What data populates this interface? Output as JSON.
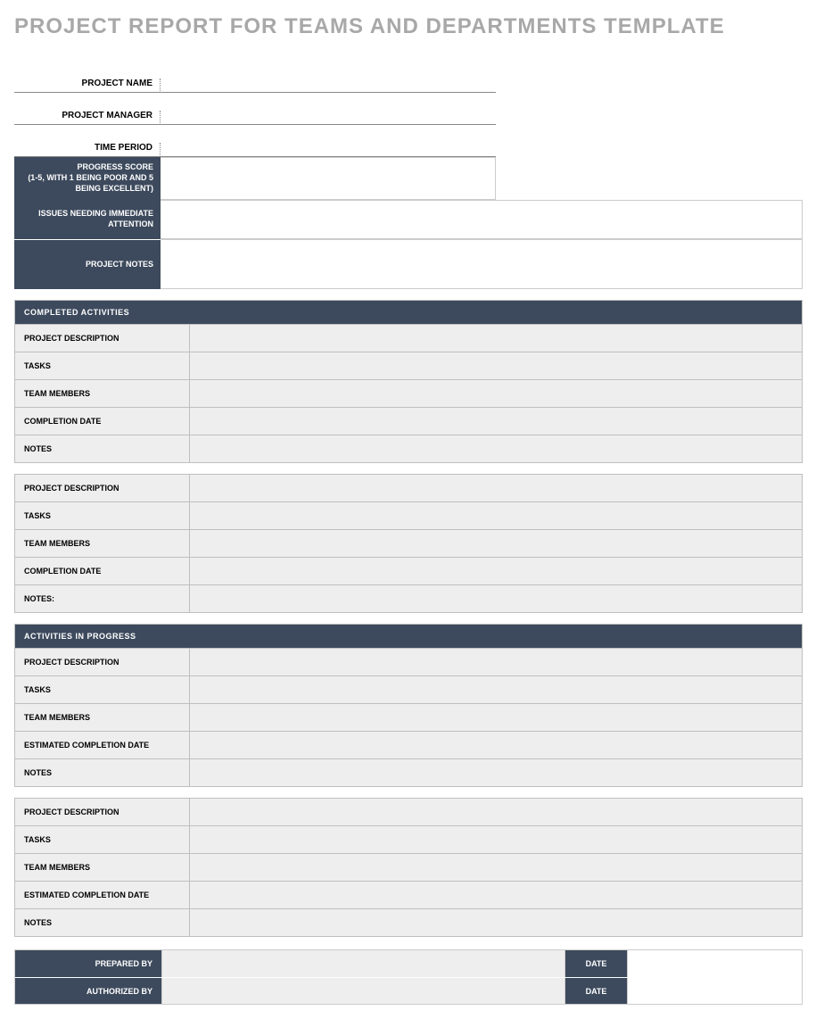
{
  "title": "PROJECT REPORT FOR TEAMS AND DEPARTMENTS TEMPLATE",
  "colors": {
    "title_text": "#a8a8a8",
    "dark_header_bg": "#3d4a5d",
    "dark_header_text": "#ffffff",
    "light_cell_bg": "#eeeeee",
    "border": "#bfbfbf",
    "page_bg": "#ffffff"
  },
  "meta": {
    "project_name_label": "PROJECT NAME",
    "project_name_value": "",
    "project_manager_label": "PROJECT MANAGER",
    "project_manager_value": "",
    "time_period_label": "TIME PERIOD",
    "time_period_value": ""
  },
  "summary": {
    "progress_score_label": "PROGRESS SCORE\n(1-5, WITH 1 BEING POOR AND 5 BEING EXCELLENT)",
    "progress_score_value": "",
    "issues_label": "ISSUES NEEDING IMMEDIATE ATTENTION",
    "issues_value": "",
    "project_notes_label": "PROJECT NOTES",
    "project_notes_value": ""
  },
  "completed": {
    "section_title": "COMPLETED ACTIVITIES",
    "blocks": [
      {
        "project_description_label": "PROJECT DESCRIPTION",
        "project_description_value": "",
        "tasks_label": "TASKS",
        "tasks_value": "",
        "team_members_label": "TEAM MEMBERS",
        "team_members_value": "",
        "completion_date_label": "COMPLETION DATE",
        "completion_date_value": "",
        "notes_label": "NOTES",
        "notes_value": ""
      },
      {
        "project_description_label": "PROJECT DESCRIPTION",
        "project_description_value": "",
        "tasks_label": "TASKS",
        "tasks_value": "",
        "team_members_label": "TEAM MEMBERS",
        "team_members_value": "",
        "completion_date_label": "COMPLETION DATE",
        "completion_date_value": "",
        "notes_label": "NOTES:",
        "notes_value": ""
      }
    ]
  },
  "in_progress": {
    "section_title": "ACTIVITIES IN PROGRESS",
    "blocks": [
      {
        "project_description_label": "PROJECT DESCRIPTION",
        "project_description_value": "",
        "tasks_label": "TASKS",
        "tasks_value": "",
        "team_members_label": "TEAM MEMBERS",
        "team_members_value": "",
        "est_completion_date_label": "ESTIMATED COMPLETION DATE",
        "est_completion_date_value": "",
        "notes_label": "NOTES",
        "notes_value": ""
      },
      {
        "project_description_label": "PROJECT DESCRIPTION",
        "project_description_value": "",
        "tasks_label": "TASKS",
        "tasks_value": "",
        "team_members_label": "TEAM MEMBERS",
        "team_members_value": "",
        "est_completion_date_label": "ESTIMATED COMPLETION DATE",
        "est_completion_date_value": "",
        "notes_label": "NOTES",
        "notes_value": ""
      }
    ]
  },
  "signoff": {
    "prepared_by_label": "PREPARED BY",
    "prepared_by_value": "",
    "prepared_date_label": "DATE",
    "prepared_date_value": "",
    "authorized_by_label": "AUTHORIZED BY",
    "authorized_by_value": "",
    "authorized_date_label": "DATE",
    "authorized_date_value": ""
  }
}
